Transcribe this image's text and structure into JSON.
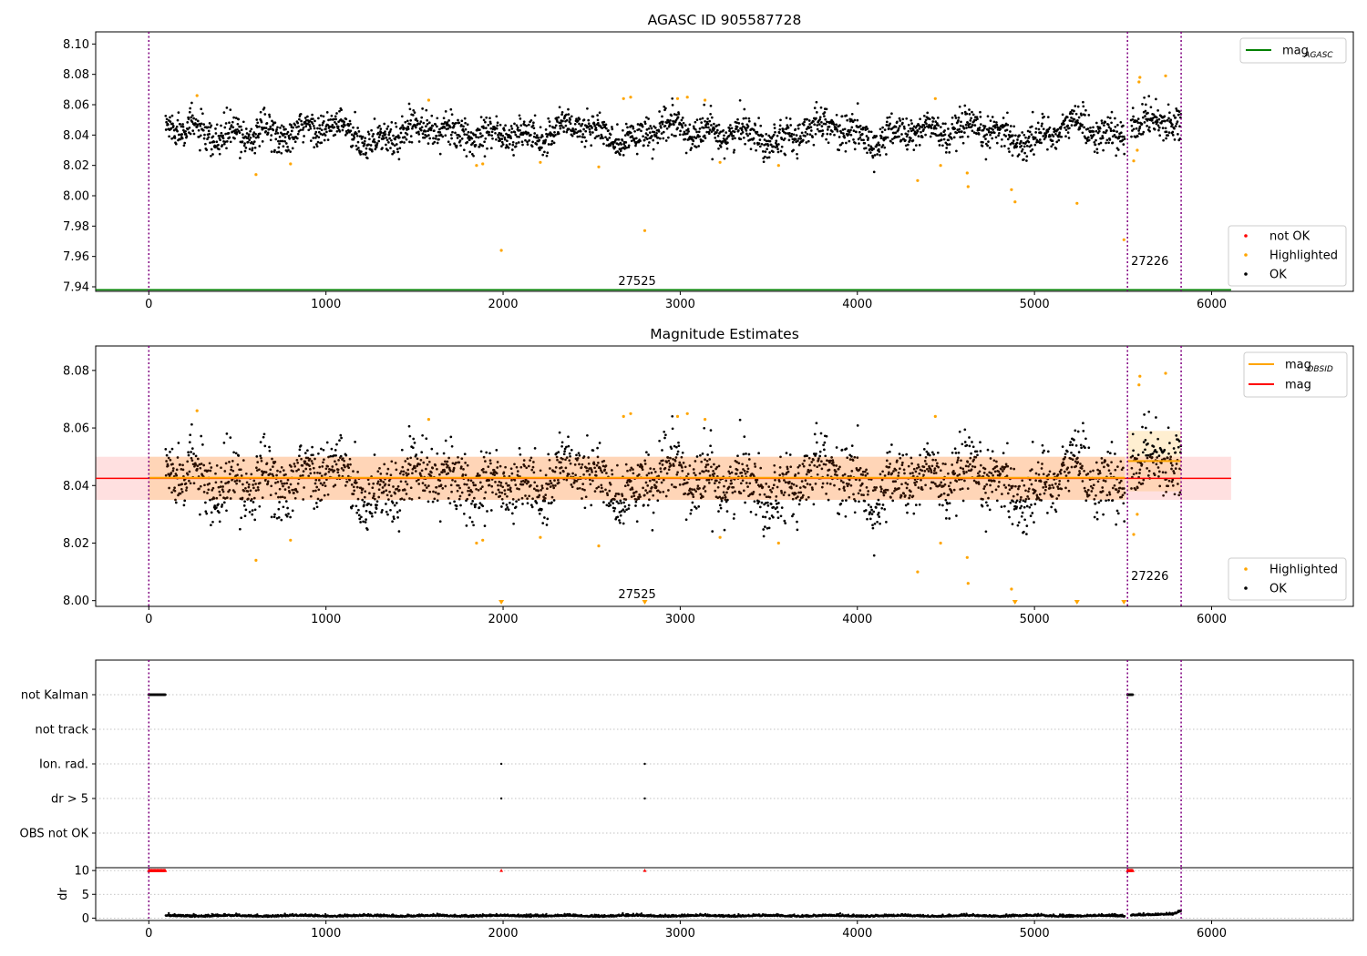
{
  "chart_data": [
    {
      "type": "scatter",
      "title": "AGASC ID 905587728",
      "xlim": [
        -300,
        6800
      ],
      "ylim": [
        7.937,
        8.108
      ],
      "xticks": [
        0,
        1000,
        2000,
        3000,
        4000,
        5000,
        6000
      ],
      "yticks": [
        7.94,
        7.96,
        7.98,
        8.0,
        8.02,
        8.04,
        8.06,
        8.08,
        8.1
      ],
      "y_decimals": 2,
      "obsid_boundaries": [
        0,
        5525,
        5828
      ],
      "obsid_annotations": [
        {
          "text": "27525",
          "x": 2650,
          "y": 7.9413
        },
        {
          "text": "27226",
          "x": 5545,
          "y": 7.9543
        }
      ],
      "agasc_line": {
        "y": 7.938,
        "x_end": 6110,
        "color": "#008000"
      },
      "segments": [
        {
          "x_start": 95,
          "x_end": 5510,
          "center": 8.0415,
          "spread": 0.013,
          "wave_amp": 0.006
        },
        {
          "x_start": 5545,
          "x_end": 5828,
          "center": 8.0495,
          "spread": 0.012,
          "wave_amp": 0.004
        }
      ],
      "highlighted": [
        [
          272,
          8.066
        ],
        [
          605,
          8.014
        ],
        [
          800,
          8.021
        ],
        [
          1580,
          8.063
        ],
        [
          1850,
          8.02
        ],
        [
          1885,
          8.021
        ],
        [
          1990,
          7.964
        ],
        [
          2210,
          8.022
        ],
        [
          2540,
          8.019
        ],
        [
          2680,
          8.064
        ],
        [
          2720,
          8.065
        ],
        [
          2800,
          7.977
        ],
        [
          2985,
          8.064
        ],
        [
          3040,
          8.065
        ],
        [
          3140,
          8.063
        ],
        [
          3225,
          8.022
        ],
        [
          3555,
          8.02
        ],
        [
          4340,
          8.01
        ],
        [
          4440,
          8.064
        ],
        [
          4470,
          8.02
        ],
        [
          4620,
          8.015
        ],
        [
          4625,
          8.006
        ],
        [
          4870,
          8.004
        ],
        [
          4890,
          7.996
        ],
        [
          5240,
          7.995
        ],
        [
          5505,
          7.971
        ],
        [
          5560,
          8.023
        ],
        [
          5580,
          8.03
        ],
        [
          5590,
          8.075
        ],
        [
          5595,
          8.078
        ],
        [
          5740,
          8.079
        ]
      ],
      "legend": {
        "placement": "upper-right",
        "items": [
          {
            "label": "mag",
            "sub": "AGASC",
            "color": "#008000",
            "kind": "line"
          }
        ]
      },
      "legend2": {
        "placement": "lower-right",
        "items": [
          {
            "label": "not OK",
            "color": "#ff0000",
            "kind": "dot"
          },
          {
            "label": "Highlighted",
            "color": "#ffa500",
            "kind": "dot"
          },
          {
            "label": "OK",
            "color": "#000000",
            "kind": "dot"
          }
        ]
      }
    },
    {
      "type": "scatter",
      "title": "Magnitude Estimates",
      "xlim": [
        -300,
        6800
      ],
      "ylim": [
        7.998,
        8.0885
      ],
      "xticks": [
        0,
        1000,
        2000,
        3000,
        4000,
        5000,
        6000
      ],
      "yticks": [
        8.0,
        8.02,
        8.04,
        8.06,
        8.08
      ],
      "y_decimals": 2,
      "obsid_boundaries": [
        0,
        5525,
        5828
      ],
      "obsid_annotations": [
        {
          "text": "27525",
          "x": 2650,
          "y": 8.0009
        },
        {
          "text": "27226",
          "x": 5545,
          "y": 8.0071
        }
      ],
      "mag_line": {
        "y": 8.0425,
        "band_low": 8.035,
        "band_high": 8.05,
        "color": "#ff0000",
        "x_start": -300,
        "x_end": 6110
      },
      "obsid_mags": [
        {
          "x_start": 0,
          "x_end": 5510,
          "y": 8.0427,
          "band_low": 8.035,
          "band_high": 8.05
        },
        {
          "x_start": 5525,
          "x_end": 5828,
          "y": 8.0485,
          "band_low": 8.038,
          "band_high": 8.059
        }
      ],
      "segments": [
        {
          "x_start": 95,
          "x_end": 5510,
          "center": 8.0415,
          "spread": 0.013,
          "wave_amp": 0.006
        },
        {
          "x_start": 5545,
          "x_end": 5828,
          "center": 8.0495,
          "spread": 0.012,
          "wave_amp": 0.004
        }
      ],
      "highlighted": [
        [
          272,
          8.066
        ],
        [
          605,
          8.014
        ],
        [
          800,
          8.021
        ],
        [
          1580,
          8.063
        ],
        [
          1850,
          8.02
        ],
        [
          1885,
          8.021
        ],
        [
          2210,
          8.022
        ],
        [
          2540,
          8.019
        ],
        [
          2680,
          8.064
        ],
        [
          2720,
          8.065
        ],
        [
          2985,
          8.064
        ],
        [
          3040,
          8.065
        ],
        [
          3140,
          8.063
        ],
        [
          3225,
          8.022
        ],
        [
          3555,
          8.02
        ],
        [
          4340,
          8.01
        ],
        [
          4440,
          8.064
        ],
        [
          4470,
          8.02
        ],
        [
          4620,
          8.015
        ],
        [
          4625,
          8.006
        ],
        [
          4870,
          8.004
        ],
        [
          5560,
          8.023
        ],
        [
          5580,
          8.03
        ],
        [
          5590,
          8.075
        ],
        [
          5595,
          8.078
        ],
        [
          5740,
          8.079
        ]
      ],
      "below_range_markers": [
        1990,
        2800,
        4890,
        5240,
        5505
      ],
      "legend": {
        "placement": "upper-right",
        "items": [
          {
            "label": "mag",
            "sub": "OBSID",
            "color": "#ffa500",
            "kind": "line"
          },
          {
            "label": "mag",
            "sub": "",
            "color": "#ff0000",
            "kind": "line"
          }
        ]
      },
      "legend2": {
        "placement": "lower-right",
        "items": [
          {
            "label": "Highlighted",
            "color": "#ffa500",
            "kind": "dot"
          },
          {
            "label": "OK",
            "color": "#000000",
            "kind": "dot"
          }
        ]
      }
    },
    {
      "type": "scatter",
      "title": "",
      "xlim": [
        -300,
        6800
      ],
      "categories": [
        "not Kalman",
        "not track",
        "Ion. rad.",
        "dr > 5",
        "OBS not OK"
      ],
      "obsid_boundaries": [
        0,
        5525,
        5828
      ],
      "flags": [
        {
          "category": "not Kalman",
          "x_ranges": [
            [
              0,
              95
            ],
            [
              5525,
              5555
            ]
          ]
        },
        {
          "category": "not track",
          "x_ranges": []
        },
        {
          "category": "Ion. rad.",
          "x_points": [
            1990,
            2800
          ]
        },
        {
          "category": "dr > 5",
          "x_points": [
            1990,
            2800
          ]
        },
        {
          "category": "OBS not OK",
          "x_ranges": []
        }
      ]
    },
    {
      "type": "scatter",
      "title": "",
      "ylabel": "dr",
      "xlim": [
        -300,
        6800
      ],
      "ylim": [
        -0.5,
        10.6
      ],
      "xticks": [
        0,
        1000,
        2000,
        3000,
        4000,
        5000,
        6000
      ],
      "yticks": [
        0,
        5,
        10
      ],
      "y_decimals": 0,
      "obsid_boundaries": [
        0,
        5525,
        5828
      ],
      "dr_clipped_ranges": [
        [
          0,
          95
        ],
        [
          5525,
          5555
        ]
      ],
      "dr_clipped_points": [
        1990,
        2800
      ],
      "dr_clipped_value": 10,
      "segments": [
        {
          "x_start": 95,
          "x_end": 5510,
          "typical": 0.35
        },
        {
          "x_start": 5545,
          "x_end": 5828,
          "typical": 0.6
        }
      ]
    }
  ]
}
